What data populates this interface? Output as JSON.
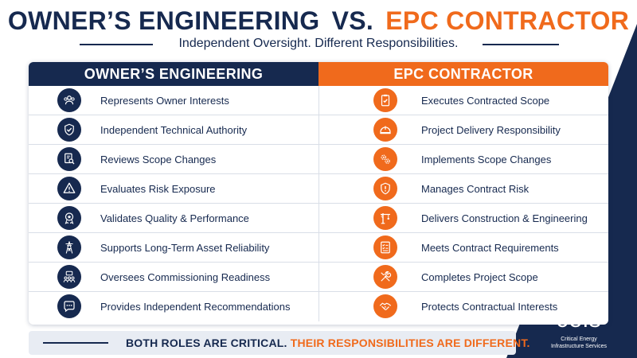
{
  "title": {
    "owner": "OWNER’S ENGINEERING",
    "vs": "VS.",
    "epc": "EPC CONTRACTOR"
  },
  "subtitle": "Independent Oversight. Different Responsibilities.",
  "columns": {
    "owner": "OWNER’S ENGINEERING",
    "epc": "EPC CONTRACTOR"
  },
  "rows": [
    {
      "owner": "Represents Owner Interests",
      "owner_icon": "people-group-icon",
      "epc": "Executes Contracted Scope",
      "epc_icon": "clipboard-check-icon"
    },
    {
      "owner": "Independent Technical Authority",
      "owner_icon": "shield-check-icon",
      "epc": "Project Delivery Responsibility",
      "epc_icon": "hard-hat-icon"
    },
    {
      "owner": "Reviews Scope Changes",
      "owner_icon": "document-search-icon",
      "epc": "Implements Scope Changes",
      "epc_icon": "gears-icon"
    },
    {
      "owner": "Evaluates Risk Exposure",
      "owner_icon": "warning-triangle-icon",
      "epc": "Manages Contract Risk",
      "epc_icon": "shield-alert-icon"
    },
    {
      "owner": "Validates Quality & Performance",
      "owner_icon": "award-badge-icon",
      "epc": "Delivers Construction & Engineering",
      "epc_icon": "crane-icon"
    },
    {
      "owner": "Supports Long-Term Asset Reliability",
      "owner_icon": "transmission-tower-icon",
      "epc": "Meets Contract Requirements",
      "epc_icon": "checklist-icon"
    },
    {
      "owner": "Oversees Commissioning Readiness",
      "owner_icon": "team-meeting-icon",
      "epc": "Completes Project Scope",
      "epc_icon": "tools-icon"
    },
    {
      "owner": "Provides Independent Recommendations",
      "owner_icon": "speech-bubble-icon",
      "epc": "Protects Contractual Interests",
      "epc_icon": "handshake-icon"
    }
  ],
  "footer": {
    "part1": "BOTH ROLES ARE CRITICAL.",
    "part2": "THEIR RESPONSIBILITIES ARE DIFFERENT."
  },
  "logo": {
    "word": "ceis",
    "line1": "Critical Energy",
    "line2": "Infrastructure Services"
  },
  "colors": {
    "navy": "#16294f",
    "orange": "#f06a1c",
    "footer_bg": "#e8ecf3"
  }
}
